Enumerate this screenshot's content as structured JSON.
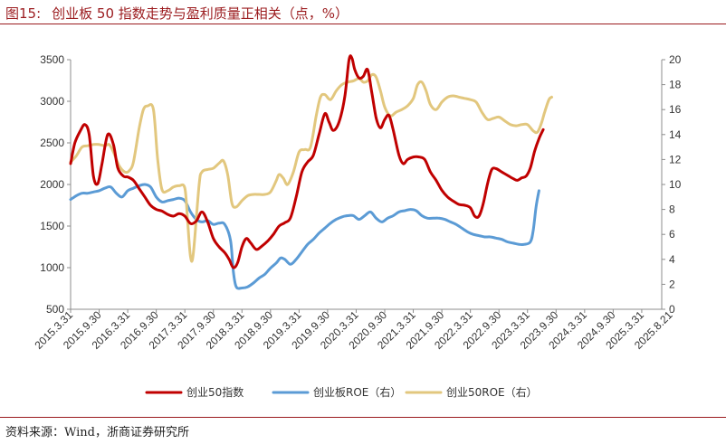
{
  "header": {
    "figure_label": "图15:",
    "title": "创业板 50 指数走势与盈利质量正相关（点，%）"
  },
  "footer": {
    "source": "资料来源：Wind，浙商证券研究所"
  },
  "colors": {
    "accent": "#9b1b1e",
    "index": "#c00000",
    "roe_board": "#5b9bd5",
    "roe_50": "#e2c77e"
  },
  "chart_data": {
    "type": "line",
    "title": "创业板 50 指数走势与盈利质量正相关（点，%）",
    "categories": [
      "2015.3.31",
      "2015.9.30",
      "2016.3.31",
      "2016.9.30",
      "2017.3.31",
      "2017.9.30",
      "2018.3.31",
      "2018.9.30",
      "2019.3.31",
      "2019.9.30",
      "2020.3.31",
      "2020.9.30",
      "2021.3.31",
      "2021.9.30",
      "2022.3.31",
      "2022.9.30",
      "2023.3.31",
      "2023.9.30",
      "2024.3.31",
      "2024.9.30",
      "2025.3.31",
      "2025.8.21"
    ],
    "x_range": [
      0,
      20.7
    ],
    "y_left": {
      "min": 500,
      "max": 3500,
      "ticks": [
        500,
        1000,
        1500,
        2000,
        2500,
        3000,
        3500
      ]
    },
    "y_right": {
      "min": 0,
      "max": 20,
      "ticks": [
        0,
        2,
        4,
        6,
        8,
        10,
        12,
        14,
        16,
        18,
        20
      ]
    },
    "series": [
      {
        "name": "创业50指数",
        "axis": "left",
        "color": "#c00000",
        "points": [
          [
            0,
            2250
          ],
          [
            0.15,
            2500
          ],
          [
            0.35,
            2650
          ],
          [
            0.5,
            2720
          ],
          [
            0.65,
            2600
          ],
          [
            0.8,
            2100
          ],
          [
            0.95,
            2010
          ],
          [
            1.1,
            2250
          ],
          [
            1.3,
            2600
          ],
          [
            1.5,
            2480
          ],
          [
            1.65,
            2200
          ],
          [
            1.85,
            2100
          ],
          [
            2.0,
            2090
          ],
          [
            2.2,
            2050
          ],
          [
            2.4,
            1950
          ],
          [
            2.6,
            1850
          ],
          [
            2.8,
            1750
          ],
          [
            3.0,
            1700
          ],
          [
            3.2,
            1680
          ],
          [
            3.4,
            1640
          ],
          [
            3.6,
            1620
          ],
          [
            3.8,
            1650
          ],
          [
            4.0,
            1620
          ],
          [
            4.2,
            1530
          ],
          [
            4.4,
            1560
          ],
          [
            4.6,
            1670
          ],
          [
            4.8,
            1550
          ],
          [
            5.0,
            1350
          ],
          [
            5.2,
            1250
          ],
          [
            5.4,
            1180
          ],
          [
            5.55,
            1100
          ],
          [
            5.7,
            1000
          ],
          [
            5.85,
            1060
          ],
          [
            6.0,
            1250
          ],
          [
            6.15,
            1350
          ],
          [
            6.3,
            1300
          ],
          [
            6.5,
            1220
          ],
          [
            6.7,
            1260
          ],
          [
            6.9,
            1320
          ],
          [
            7.1,
            1400
          ],
          [
            7.3,
            1500
          ],
          [
            7.5,
            1540
          ],
          [
            7.7,
            1600
          ],
          [
            7.9,
            1850
          ],
          [
            8.1,
            2150
          ],
          [
            8.3,
            2270
          ],
          [
            8.5,
            2350
          ],
          [
            8.7,
            2600
          ],
          [
            8.9,
            2850
          ],
          [
            9.05,
            2750
          ],
          [
            9.2,
            2650
          ],
          [
            9.4,
            2750
          ],
          [
            9.6,
            3050
          ],
          [
            9.75,
            3500
          ],
          [
            9.85,
            3520
          ],
          [
            9.95,
            3380
          ],
          [
            10.1,
            3280
          ],
          [
            10.25,
            3300
          ],
          [
            10.4,
            3380
          ],
          [
            10.55,
            3100
          ],
          [
            10.7,
            2800
          ],
          [
            10.85,
            2680
          ],
          [
            11.0,
            2780
          ],
          [
            11.15,
            2830
          ],
          [
            11.3,
            2650
          ],
          [
            11.5,
            2350
          ],
          [
            11.65,
            2250
          ],
          [
            11.8,
            2300
          ],
          [
            12.0,
            2330
          ],
          [
            12.2,
            2330
          ],
          [
            12.4,
            2300
          ],
          [
            12.6,
            2150
          ],
          [
            12.8,
            2050
          ],
          [
            13.0,
            1930
          ],
          [
            13.2,
            1850
          ],
          [
            13.4,
            1800
          ],
          [
            13.6,
            1760
          ],
          [
            13.8,
            1750
          ],
          [
            14.0,
            1720
          ],
          [
            14.15,
            1620
          ],
          [
            14.3,
            1620
          ],
          [
            14.45,
            1770
          ],
          [
            14.6,
            2010
          ],
          [
            14.75,
            2180
          ],
          [
            14.9,
            2190
          ],
          [
            15.1,
            2150
          ],
          [
            15.3,
            2110
          ],
          [
            15.5,
            2070
          ],
          [
            15.65,
            2050
          ],
          [
            15.8,
            2080
          ],
          [
            15.95,
            2100
          ],
          [
            16.1,
            2200
          ],
          [
            16.25,
            2400
          ],
          [
            16.4,
            2550
          ],
          [
            16.55,
            2660
          ]
        ]
      },
      {
        "name": "创业板ROE（右）",
        "axis": "right",
        "color": "#5b9bd5",
        "points": [
          [
            0,
            8.8
          ],
          [
            0.2,
            9.1
          ],
          [
            0.4,
            9.3
          ],
          [
            0.6,
            9.3
          ],
          [
            0.8,
            9.4
          ],
          [
            1.0,
            9.5
          ],
          [
            1.2,
            9.7
          ],
          [
            1.4,
            9.8
          ],
          [
            1.6,
            9.3
          ],
          [
            1.8,
            9.0
          ],
          [
            2.0,
            9.5
          ],
          [
            2.2,
            9.7
          ],
          [
            2.4,
            9.9
          ],
          [
            2.6,
            10.0
          ],
          [
            2.8,
            9.8
          ],
          [
            3.0,
            9.0
          ],
          [
            3.2,
            8.6
          ],
          [
            3.4,
            8.7
          ],
          [
            3.6,
            8.8
          ],
          [
            3.8,
            8.9
          ],
          [
            4.0,
            8.7
          ],
          [
            4.2,
            7.8
          ],
          [
            4.4,
            7.2
          ],
          [
            4.6,
            7.0
          ],
          [
            4.8,
            7.1
          ],
          [
            5.0,
            6.8
          ],
          [
            5.2,
            6.9
          ],
          [
            5.4,
            6.8
          ],
          [
            5.6,
            5.5
          ],
          [
            5.7,
            3.0
          ],
          [
            5.8,
            1.8
          ],
          [
            6.0,
            1.7
          ],
          [
            6.2,
            1.8
          ],
          [
            6.4,
            2.1
          ],
          [
            6.6,
            2.5
          ],
          [
            6.8,
            2.8
          ],
          [
            7.0,
            3.3
          ],
          [
            7.2,
            3.7
          ],
          [
            7.35,
            4.1
          ],
          [
            7.5,
            4.0
          ],
          [
            7.7,
            3.6
          ],
          [
            7.9,
            4.0
          ],
          [
            8.1,
            4.6
          ],
          [
            8.3,
            5.2
          ],
          [
            8.5,
            5.6
          ],
          [
            8.7,
            6.1
          ],
          [
            8.9,
            6.5
          ],
          [
            9.1,
            6.9
          ],
          [
            9.3,
            7.2
          ],
          [
            9.5,
            7.4
          ],
          [
            9.7,
            7.5
          ],
          [
            9.9,
            7.5
          ],
          [
            10.1,
            7.2
          ],
          [
            10.3,
            7.5
          ],
          [
            10.5,
            7.8
          ],
          [
            10.7,
            7.3
          ],
          [
            10.9,
            7.0
          ],
          [
            11.1,
            7.3
          ],
          [
            11.3,
            7.5
          ],
          [
            11.5,
            7.8
          ],
          [
            11.7,
            7.9
          ],
          [
            11.9,
            8.0
          ],
          [
            12.1,
            7.9
          ],
          [
            12.3,
            7.5
          ],
          [
            12.5,
            7.3
          ],
          [
            12.7,
            7.3
          ],
          [
            12.9,
            7.3
          ],
          [
            13.1,
            7.2
          ],
          [
            13.3,
            7.0
          ],
          [
            13.5,
            6.8
          ],
          [
            13.7,
            6.5
          ],
          [
            13.9,
            6.2
          ],
          [
            14.1,
            6.0
          ],
          [
            14.3,
            5.9
          ],
          [
            14.5,
            5.8
          ],
          [
            14.7,
            5.8
          ],
          [
            14.9,
            5.7
          ],
          [
            15.1,
            5.6
          ],
          [
            15.3,
            5.4
          ],
          [
            15.5,
            5.3
          ],
          [
            15.7,
            5.2
          ],
          [
            15.9,
            5.2
          ],
          [
            16.1,
            5.4
          ],
          [
            16.2,
            6.3
          ],
          [
            16.3,
            8.2
          ],
          [
            16.4,
            9.5
          ]
        ]
      },
      {
        "name": "创业50ROE（右）",
        "axis": "right",
        "color": "#e2c77e",
        "points": [
          [
            0,
            11.8
          ],
          [
            0.2,
            12.3
          ],
          [
            0.4,
            13.0
          ],
          [
            0.6,
            13.1
          ],
          [
            0.8,
            13.2
          ],
          [
            1.0,
            13.2
          ],
          [
            1.2,
            13.1
          ],
          [
            1.35,
            13.2
          ],
          [
            1.5,
            12.6
          ],
          [
            1.7,
            11.5
          ],
          [
            1.9,
            11.0
          ],
          [
            2.05,
            11.1
          ],
          [
            2.2,
            11.8
          ],
          [
            2.4,
            14.5
          ],
          [
            2.55,
            16.0
          ],
          [
            2.7,
            16.3
          ],
          [
            2.9,
            16.0
          ],
          [
            3.05,
            12.0
          ],
          [
            3.2,
            9.6
          ],
          [
            3.4,
            9.5
          ],
          [
            3.6,
            9.8
          ],
          [
            3.8,
            9.9
          ],
          [
            4.0,
            9.7
          ],
          [
            4.1,
            7.0
          ],
          [
            4.2,
            4.2
          ],
          [
            4.3,
            4.5
          ],
          [
            4.5,
            10.0
          ],
          [
            4.6,
            11.0
          ],
          [
            4.8,
            11.2
          ],
          [
            5.0,
            11.3
          ],
          [
            5.2,
            11.7
          ],
          [
            5.35,
            11.9
          ],
          [
            5.5,
            10.8
          ],
          [
            5.65,
            8.5
          ],
          [
            5.8,
            8.2
          ],
          [
            6.0,
            8.7
          ],
          [
            6.2,
            9.1
          ],
          [
            6.4,
            9.2
          ],
          [
            6.6,
            9.2
          ],
          [
            6.8,
            9.2
          ],
          [
            7.0,
            9.4
          ],
          [
            7.2,
            10.3
          ],
          [
            7.3,
            10.8
          ],
          [
            7.45,
            10.5
          ],
          [
            7.6,
            10.0
          ],
          [
            7.8,
            11.0
          ],
          [
            8.0,
            12.6
          ],
          [
            8.2,
            12.8
          ],
          [
            8.4,
            13.0
          ],
          [
            8.6,
            15.5
          ],
          [
            8.75,
            17.0
          ],
          [
            8.9,
            17.2
          ],
          [
            9.1,
            16.8
          ],
          [
            9.3,
            17.5
          ],
          [
            9.5,
            18.0
          ],
          [
            9.7,
            18.2
          ],
          [
            9.9,
            18.3
          ],
          [
            10.1,
            18.5
          ],
          [
            10.25,
            18.2
          ],
          [
            10.4,
            18.3
          ],
          [
            10.55,
            18.8
          ],
          [
            10.7,
            18.6
          ],
          [
            10.85,
            17.5
          ],
          [
            11.0,
            16.2
          ],
          [
            11.2,
            15.5
          ],
          [
            11.4,
            15.8
          ],
          [
            11.6,
            16.0
          ],
          [
            11.8,
            16.3
          ],
          [
            12.0,
            16.9
          ],
          [
            12.15,
            18.0
          ],
          [
            12.3,
            18.2
          ],
          [
            12.45,
            17.5
          ],
          [
            12.6,
            16.4
          ],
          [
            12.8,
            16.0
          ],
          [
            13.0,
            16.6
          ],
          [
            13.2,
            17.0
          ],
          [
            13.4,
            17.1
          ],
          [
            13.6,
            17.0
          ],
          [
            13.8,
            16.9
          ],
          [
            14.0,
            16.8
          ],
          [
            14.2,
            16.6
          ],
          [
            14.4,
            15.8
          ],
          [
            14.6,
            15.2
          ],
          [
            14.8,
            15.3
          ],
          [
            15.0,
            15.4
          ],
          [
            15.2,
            15.1
          ],
          [
            15.4,
            14.8
          ],
          [
            15.6,
            14.7
          ],
          [
            15.8,
            14.8
          ],
          [
            16.0,
            14.8
          ],
          [
            16.2,
            14.3
          ],
          [
            16.35,
            14.2
          ],
          [
            16.5,
            15.0
          ],
          [
            16.6,
            15.8
          ],
          [
            16.75,
            16.8
          ],
          [
            16.85,
            17.0
          ]
        ]
      }
    ],
    "legend": {
      "position": "bottom"
    },
    "grid": false
  }
}
